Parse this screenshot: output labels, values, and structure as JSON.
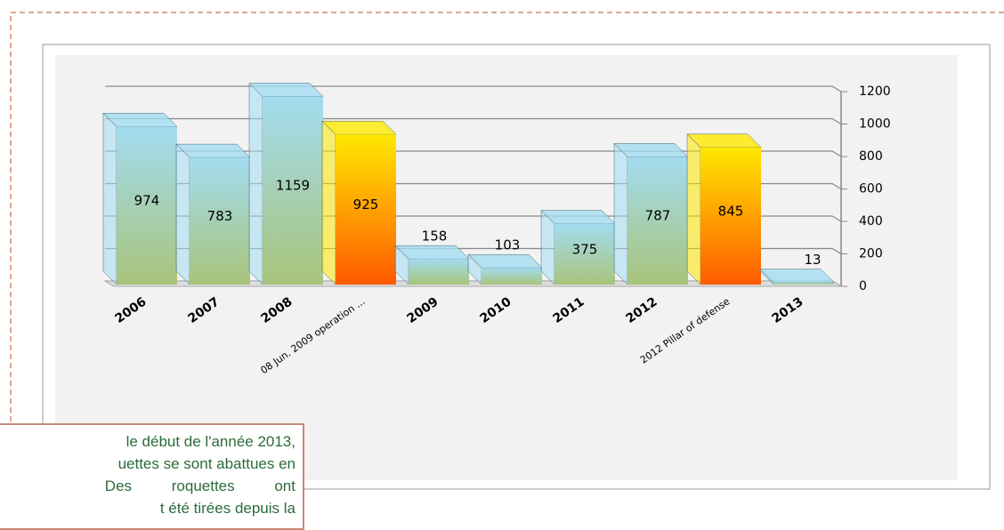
{
  "chart_data": {
    "type": "bar3d",
    "categories": [
      "2006",
      "2007",
      "2008",
      "08 Jun. 2009 operation ...",
      "2009",
      "2010",
      "2011",
      "2012",
      "2012 Pillar of defense",
      "2013"
    ],
    "values": [
      974,
      783,
      1159,
      925,
      158,
      103,
      375,
      787,
      845,
      13
    ],
    "colors": [
      [
        "#a3dcf0",
        "#a8c47a"
      ],
      [
        "#a3dcf0",
        "#a8c47a"
      ],
      [
        "#a3dcf0",
        "#a8c47a"
      ],
      [
        "#ffe800",
        "#ff5a00"
      ],
      [
        "#a3dcf0",
        "#a8c47a"
      ],
      [
        "#a3dcf0",
        "#a8c47a"
      ],
      [
        "#a3dcf0",
        "#a8c47a"
      ],
      [
        "#a3dcf0",
        "#a8c47a"
      ],
      [
        "#ffe800",
        "#ff5a00"
      ],
      [
        "#a3dcf0",
        "#a8c47a"
      ]
    ],
    "ylim": [
      0,
      1200
    ],
    "yticks": [
      0,
      200,
      400,
      600,
      800,
      1000,
      1200
    ],
    "grid": true,
    "annotation": [
      "le début de l'année 2013,",
      "uettes se sont abattues en",
      "Des roquettes ont",
      "t été tirées depuis la"
    ]
  }
}
